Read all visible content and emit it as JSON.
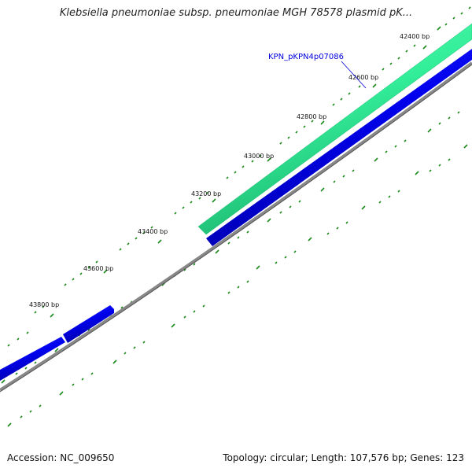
{
  "title": "Klebsiella pneumoniae subsp. pneumoniae MGH 78578 plasmid pK...",
  "accession_text": "Accession: NC_009650",
  "summary_text": "Topology: circular; Length: 107,576 bp; Genes: 123",
  "ticks": [
    "42400 bp",
    "42600 bp",
    "42800 bp",
    "43000 bp",
    "43200 bp",
    "43400 bp",
    "43600 bp",
    "43800 bp"
  ],
  "gene_label": "KPN_pKPN4p07086",
  "colors": {
    "highlight_gene": "#33ee99",
    "gene": "#0000ee",
    "backbone": "#888888",
    "tick": "#1a8a1a",
    "label_line": "#0000dd"
  }
}
